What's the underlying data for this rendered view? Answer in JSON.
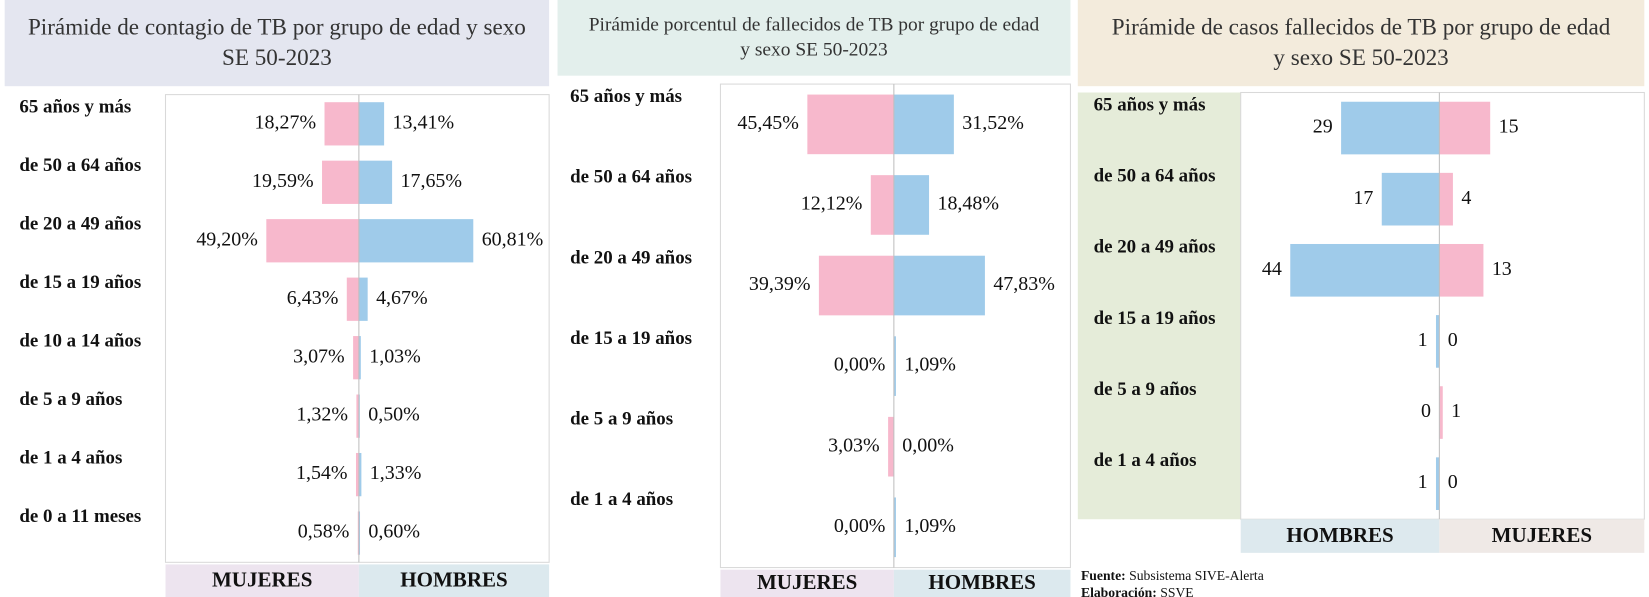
{
  "chart_data": [
    {
      "type": "bar",
      "title": "Pirámide de contagio de TB por grupo de edad y sexo SE 50-2023",
      "categories": [
        "65 años y más",
        "de 50 a 64 años",
        "de 20 a 49 años",
        "de 15 a 19 años",
        "de 10 a 14 años",
        "de 5 a 9 años",
        "de 1 a 4 años",
        "de 0 a 11 meses"
      ],
      "series": [
        {
          "name": "MUJERES",
          "color": "#f7b8cc",
          "values": [
            18.27,
            19.59,
            49.2,
            6.43,
            3.07,
            1.32,
            1.54,
            0.58
          ],
          "value_labels": [
            "18,27%",
            "19,59%",
            "49,20%",
            "6,43%",
            "3,07%",
            "1,32%",
            "1,54%",
            "0,58%"
          ]
        },
        {
          "name": "HOMBRES",
          "color": "#9fcbea",
          "values": [
            13.41,
            17.65,
            60.81,
            4.67,
            1.03,
            0.5,
            1.33,
            0.6
          ],
          "value_labels": [
            "13,41%",
            "17,65%",
            "60,81%",
            "4,67%",
            "1,03%",
            "0,50%",
            "1,33%",
            "0,60%"
          ]
        }
      ],
      "xlim": [
        0,
        100
      ]
    },
    {
      "type": "bar",
      "title": "Pirámide porcentul de fallecidos de TB por grupo de edad y sexo SE 50-2023",
      "categories": [
        "65 años y más",
        "de 50 a 64 años",
        "de 20 a 49 años",
        "de 15 a 19 años",
        "de 5 a 9 años",
        "de 1 a 4 años"
      ],
      "series": [
        {
          "name": "MUJERES",
          "color": "#f7b8cc",
          "values": [
            45.45,
            12.12,
            39.39,
            0.0,
            3.03,
            0.0
          ],
          "value_labels": [
            "45,45%",
            "12,12%",
            "39,39%",
            "0,00%",
            "3,03%",
            "0,00%"
          ]
        },
        {
          "name": "HOMBRES",
          "color": "#9fcbea",
          "values": [
            31.52,
            18.48,
            47.83,
            1.09,
            0.0,
            1.09
          ],
          "value_labels": [
            "31,52%",
            "18,48%",
            "47,83%",
            "1,09%",
            "0,00%",
            "1,09%"
          ]
        }
      ],
      "xlim": [
        0,
        90
      ]
    },
    {
      "type": "bar",
      "title": "Pirámide de casos fallecidos de TB por grupo de edad y sexo SE 50-2023",
      "categories": [
        "65 años y más",
        "de 50 a 64 años",
        "de 20 a 49 años",
        "de 15 a 19 años",
        "de 5 a 9 años",
        "de 1 a 4 años"
      ],
      "series": [
        {
          "name": "HOMBRES",
          "color": "#9fcbea",
          "values": [
            29,
            17,
            44,
            1,
            0,
            1
          ]
        },
        {
          "name": "MUJERES",
          "color": "#f7b8cc",
          "values": [
            15,
            4,
            13,
            0,
            1,
            0
          ]
        }
      ],
      "xlim": [
        0,
        58
      ]
    }
  ],
  "footer": {
    "source_label": "Fuente:",
    "source": "Subsistema  SIVE-Alerta",
    "credit_label": "Elaboración:",
    "credit": "SSVE"
  }
}
